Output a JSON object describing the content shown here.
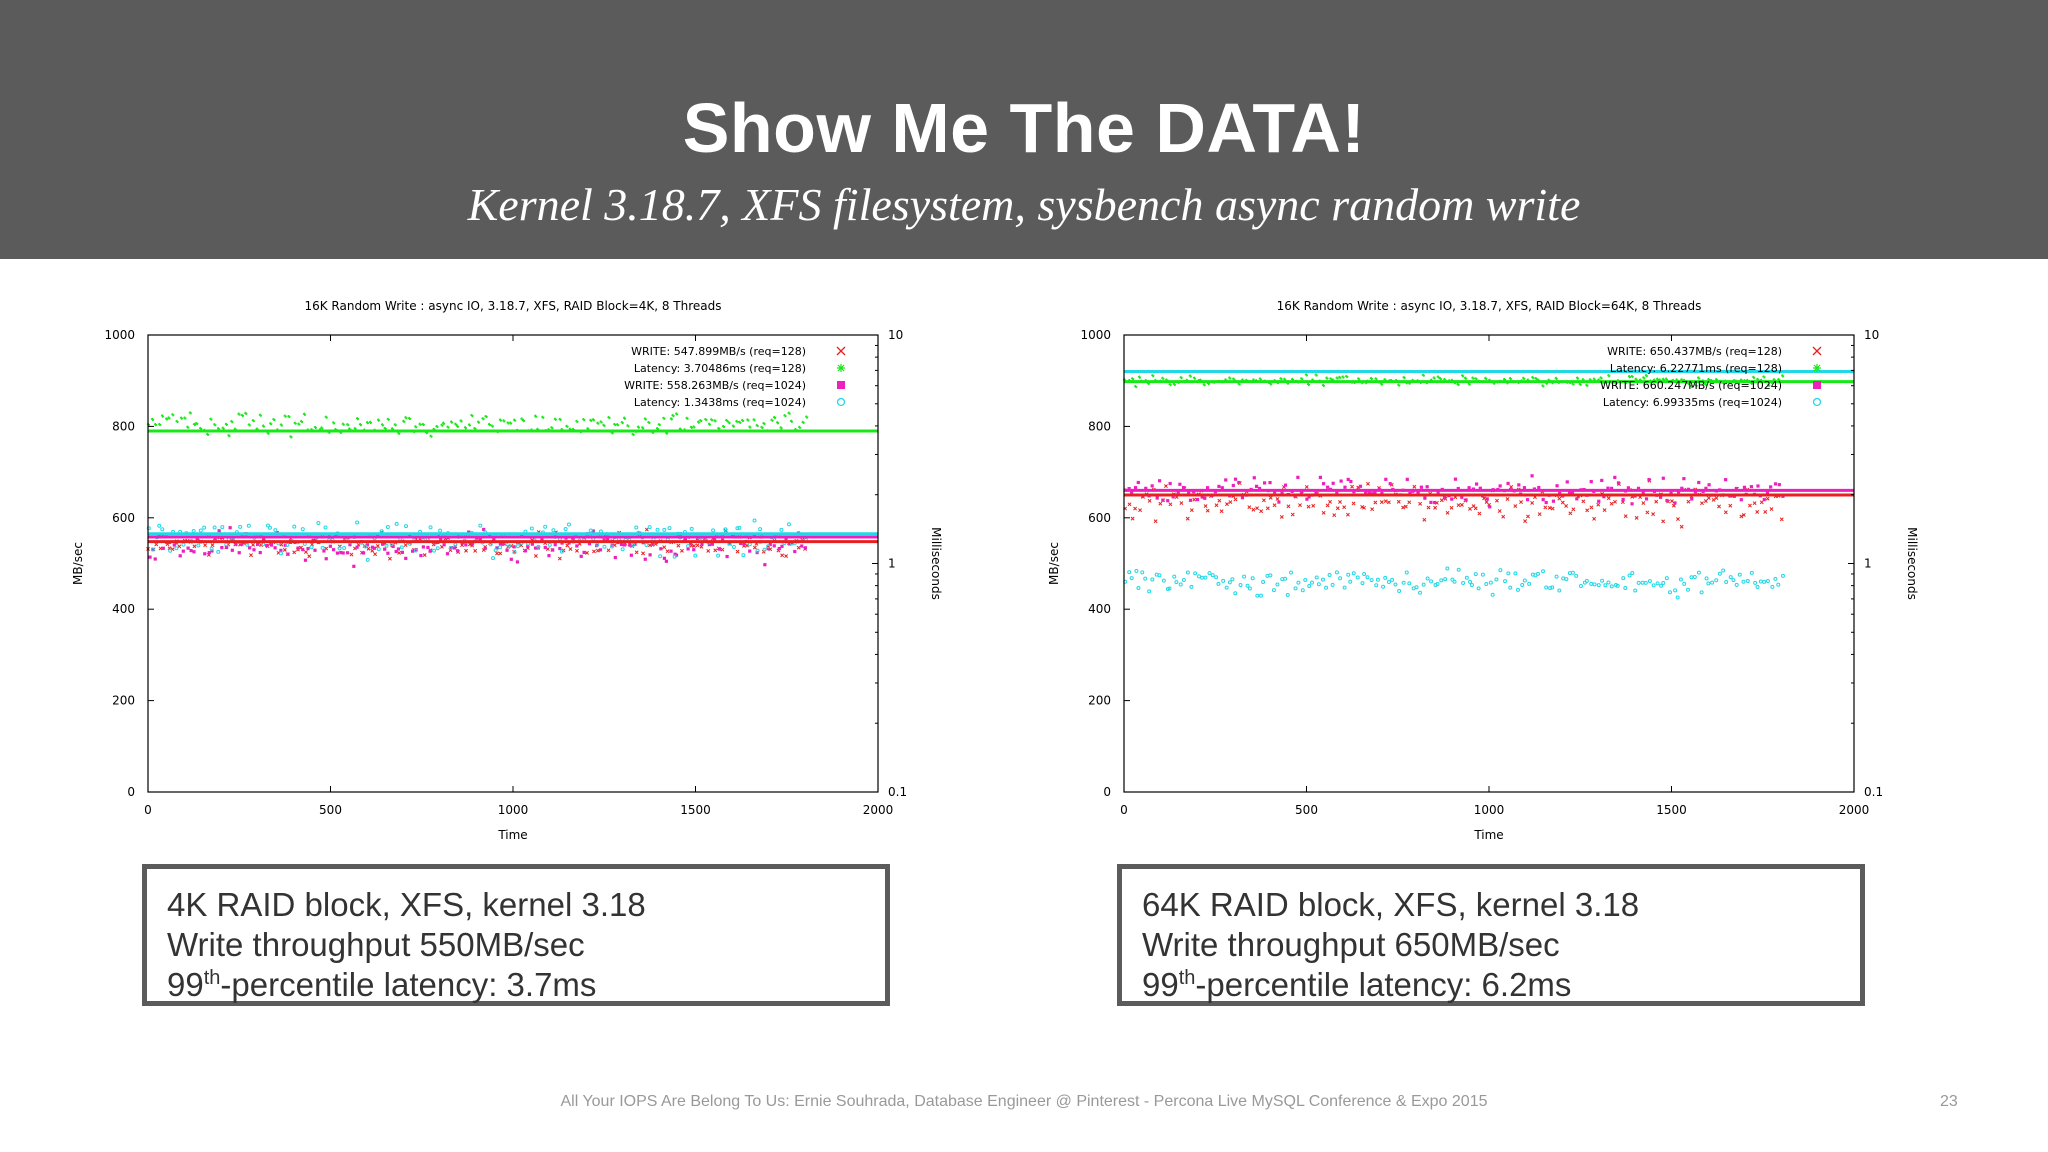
{
  "slide": {
    "title": "Show Me The DATA!",
    "subtitle": "Kernel 3.18.7, XFS filesystem, sysbench async random write",
    "footer": "All Your IOPS Are Belong To Us: Ernie Souhrada, Database Engineer @ Pinterest - Percona Live MySQL Conference & Expo 2015",
    "page_number": "23"
  },
  "captions": [
    {
      "line1": "4K RAID block, XFS, kernel 3.18",
      "line2": "Write throughput 550MB/sec",
      "line3_pre": "99",
      "line3_sup": "th",
      "line3_post": "-percentile latency: 3.7ms"
    },
    {
      "line1": "64K RAID block, XFS, kernel 3.18",
      "line2": "Write throughput 650MB/sec",
      "line3_pre": "99",
      "line3_sup": "th",
      "line3_post": "-percentile latency: 6.2ms"
    }
  ],
  "colors": {
    "header_bg": "#5b5b5b",
    "write_128": "#e8201f",
    "latency_128": "#17e817",
    "write_1024": "#ee1fbf",
    "latency_1024": "#22d8e6"
  },
  "chart_data": [
    {
      "type": "scatter",
      "title": "16K Random Write : async IO, 3.18.7, XFS, RAID Block=4K, 8 Threads",
      "xlabel": "Time",
      "ylabel": "MB/sec",
      "y2label": "Milliseconds",
      "xlim": [
        0,
        2000
      ],
      "ylim": [
        0,
        1000
      ],
      "y2lim": [
        0.1,
        10
      ],
      "y2_scale": "log",
      "xticks": [
        "0",
        "500",
        "1000",
        "1500",
        "2000"
      ],
      "yticks": [
        "0",
        "200",
        "400",
        "600",
        "800",
        "1000"
      ],
      "y2ticks": [
        "0.1",
        "1",
        "10"
      ],
      "grid": false,
      "legend_position": "top-right",
      "x_end": 1800,
      "series": [
        {
          "name": "WRITE: 547.899MB/s (req=128)",
          "axis": "y",
          "marker": "cross",
          "color": "#e8201f",
          "mean": 548,
          "band": [
            500,
            580
          ],
          "avg_line": 548
        },
        {
          "name": "Latency: 3.70486ms (req=128)",
          "axis": "y2",
          "marker": "star",
          "color": "#17e817",
          "mean": 3.70486,
          "band_left": [
            770,
            840
          ],
          "avg_line_left": 790
        },
        {
          "name": "WRITE: 558.263MB/s (req=1024)",
          "axis": "y",
          "marker": "square",
          "color": "#ee1fbf",
          "mean": 558,
          "band": [
            490,
            585
          ],
          "avg_line": 558
        },
        {
          "name": "Latency: 1.3438ms (req=1024)",
          "axis": "y2",
          "marker": "circle",
          "color": "#22d8e6",
          "mean": 1.3438,
          "band_left": [
            500,
            610
          ],
          "avg_line_left": 565
        }
      ]
    },
    {
      "type": "scatter",
      "title": "16K Random Write : async IO, 3.18.7, XFS, RAID Block=64K, 8 Threads",
      "xlabel": "Time",
      "ylabel": "MB/sec",
      "y2label": "Milliseconds",
      "xlim": [
        0,
        2000
      ],
      "ylim": [
        0,
        1000
      ],
      "y2lim": [
        0.1,
        10
      ],
      "y2_scale": "log",
      "xticks": [
        "0",
        "500",
        "1000",
        "1500",
        "2000"
      ],
      "yticks": [
        "0",
        "200",
        "400",
        "600",
        "800",
        "1000"
      ],
      "y2ticks": [
        "0.1",
        "1",
        "10"
      ],
      "grid": false,
      "legend_position": "top-right",
      "x_end": 1800,
      "series": [
        {
          "name": "WRITE: 650.437MB/s (req=128)",
          "axis": "y",
          "marker": "cross",
          "color": "#e8201f",
          "mean": 650,
          "band": [
            570,
            690
          ],
          "avg_line": 650
        },
        {
          "name": "Latency: 6.22771ms (req=128)",
          "axis": "y2",
          "marker": "star",
          "color": "#17e817",
          "mean": 6.22771,
          "band_left": [
            885,
            915
          ],
          "avg_line_left": 898
        },
        {
          "name": "WRITE: 660.247MB/s (req=1024)",
          "axis": "y",
          "marker": "square",
          "color": "#ee1fbf",
          "mean": 660,
          "band": [
            620,
            700
          ],
          "avg_line": 660
        },
        {
          "name": "Latency: 6.99335ms (req=1024)",
          "axis": "y2",
          "marker": "circle",
          "color": "#22d8e6",
          "mean": 6.99335,
          "band_left": [
            420,
            500
          ],
          "avg_line_left": 920
        }
      ]
    }
  ]
}
